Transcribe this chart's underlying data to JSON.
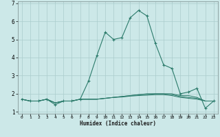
{
  "xlabel": "Humidex (Indice chaleur)",
  "x": [
    0,
    1,
    2,
    3,
    4,
    5,
    6,
    7,
    8,
    9,
    10,
    11,
    12,
    13,
    14,
    15,
    16,
    17,
    18,
    19,
    20,
    21,
    22,
    23
  ],
  "main_line": [
    1.7,
    1.6,
    1.6,
    1.7,
    1.4,
    1.6,
    1.6,
    1.7,
    2.7,
    4.1,
    5.4,
    5.0,
    5.1,
    6.2,
    6.6,
    6.3,
    4.8,
    3.6,
    3.4,
    2.0,
    2.1,
    2.3,
    1.2,
    1.6
  ],
  "flat_lines": [
    [
      1.7,
      1.6,
      1.6,
      1.7,
      1.5,
      1.6,
      1.6,
      1.7,
      1.7,
      1.7,
      1.75,
      1.8,
      1.85,
      1.9,
      1.95,
      2.0,
      2.0,
      2.0,
      2.0,
      1.9,
      1.9,
      1.8,
      1.6,
      1.6
    ],
    [
      1.7,
      1.6,
      1.6,
      1.7,
      1.5,
      1.6,
      1.6,
      1.7,
      1.7,
      1.7,
      1.75,
      1.8,
      1.85,
      1.9,
      1.95,
      1.97,
      2.0,
      2.0,
      1.95,
      1.85,
      1.8,
      1.75,
      1.6,
      1.6
    ],
    [
      1.7,
      1.6,
      1.6,
      1.7,
      1.5,
      1.6,
      1.6,
      1.7,
      1.7,
      1.7,
      1.75,
      1.8,
      1.82,
      1.87,
      1.9,
      1.92,
      1.95,
      1.95,
      1.9,
      1.8,
      1.75,
      1.7,
      1.6,
      1.6
    ]
  ],
  "line_color": "#2a7a6a",
  "bg_color": "#cce8e8",
  "grid_color": "#aacccc",
  "ylim": [
    0.9,
    7.1
  ],
  "xlim": [
    -0.5,
    23.5
  ],
  "yticks": [
    1,
    2,
    3,
    4,
    5,
    6,
    7
  ],
  "xticks": [
    0,
    1,
    2,
    3,
    4,
    5,
    6,
    7,
    8,
    9,
    10,
    11,
    12,
    13,
    14,
    15,
    16,
    17,
    18,
    19,
    20,
    21,
    22,
    23
  ]
}
